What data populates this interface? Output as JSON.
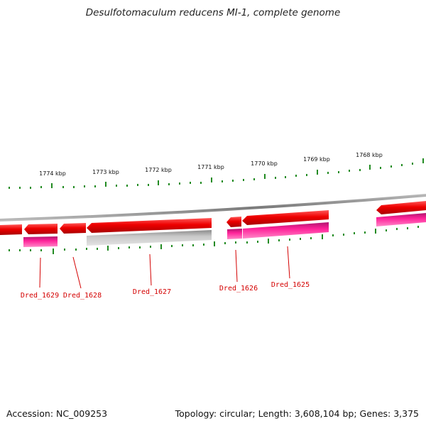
{
  "header": {
    "title": "Desulfotomaculum reducens MI-1, complete genome"
  },
  "genome_map": {
    "scale_labels": [
      "1774 kbp",
      "1773 kbp",
      "1772 kbp",
      "1771 kbp",
      "1770 kbp",
      "1769 kbp",
      "1768 kbp"
    ],
    "gene_labels": [
      "Dred_1629",
      "Dred_1628",
      "Dred_1627",
      "Dred_1626",
      "Dred_1625"
    ],
    "colors": {
      "backbone": "#8a8a8a",
      "cds": "#ee0000",
      "feature_magenta": "#ff2299",
      "feature_grey": "#c8c8c8",
      "tick": "#228b22",
      "label": "#d40000"
    }
  },
  "footer": {
    "accession": "Accession: NC_009253",
    "summary": "Topology: circular; Length: 3,608,104 bp; Genes: 3,375"
  }
}
